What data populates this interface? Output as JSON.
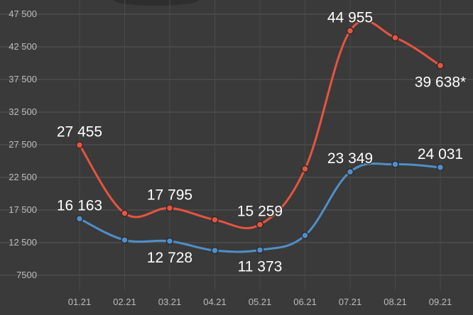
{
  "chart_data": {
    "type": "line",
    "categories": [
      "01.21",
      "02.21",
      "03.21",
      "04.21",
      "05.21",
      "06.21",
      "07.21",
      "08.21",
      "09.21"
    ],
    "y_ticks": [
      "7500",
      "12 500",
      "17 500",
      "22 500",
      "27 500",
      "32 500",
      "37 500",
      "42 500",
      "47 500"
    ],
    "y_tick_values": [
      7500,
      12500,
      17500,
      22500,
      27500,
      32500,
      37500,
      42500,
      47500
    ],
    "ylim": [
      7500,
      47500
    ],
    "grid": true,
    "series": [
      {
        "color": "#e8543f",
        "values": [
          27455,
          17000,
          17795,
          16000,
          15259,
          23800,
          44955,
          43900,
          39638
        ]
      },
      {
        "color": "#4f8fc9",
        "values": [
          16163,
          12900,
          12728,
          11300,
          11373,
          13600,
          23349,
          24500,
          24031
        ]
      }
    ],
    "data_labels": [
      {
        "series": 0,
        "index": 0,
        "text": "27 455",
        "pos": "above"
      },
      {
        "series": 0,
        "index": 2,
        "text": "17 795",
        "pos": "above"
      },
      {
        "series": 0,
        "index": 4,
        "text": "15 259",
        "pos": "above"
      },
      {
        "series": 0,
        "index": 6,
        "text": "44 955",
        "pos": "above"
      },
      {
        "series": 0,
        "index": 8,
        "text": "39 638*",
        "pos": "below"
      },
      {
        "series": 1,
        "index": 0,
        "text": "16 163",
        "pos": "above"
      },
      {
        "series": 1,
        "index": 2,
        "text": "12 728",
        "pos": "below"
      },
      {
        "series": 1,
        "index": 4,
        "text": "11 373",
        "pos": "below"
      },
      {
        "series": 1,
        "index": 6,
        "text": "23 349",
        "pos": "above"
      },
      {
        "series": 1,
        "index": 8,
        "text": "24 031",
        "pos": "above"
      }
    ]
  }
}
